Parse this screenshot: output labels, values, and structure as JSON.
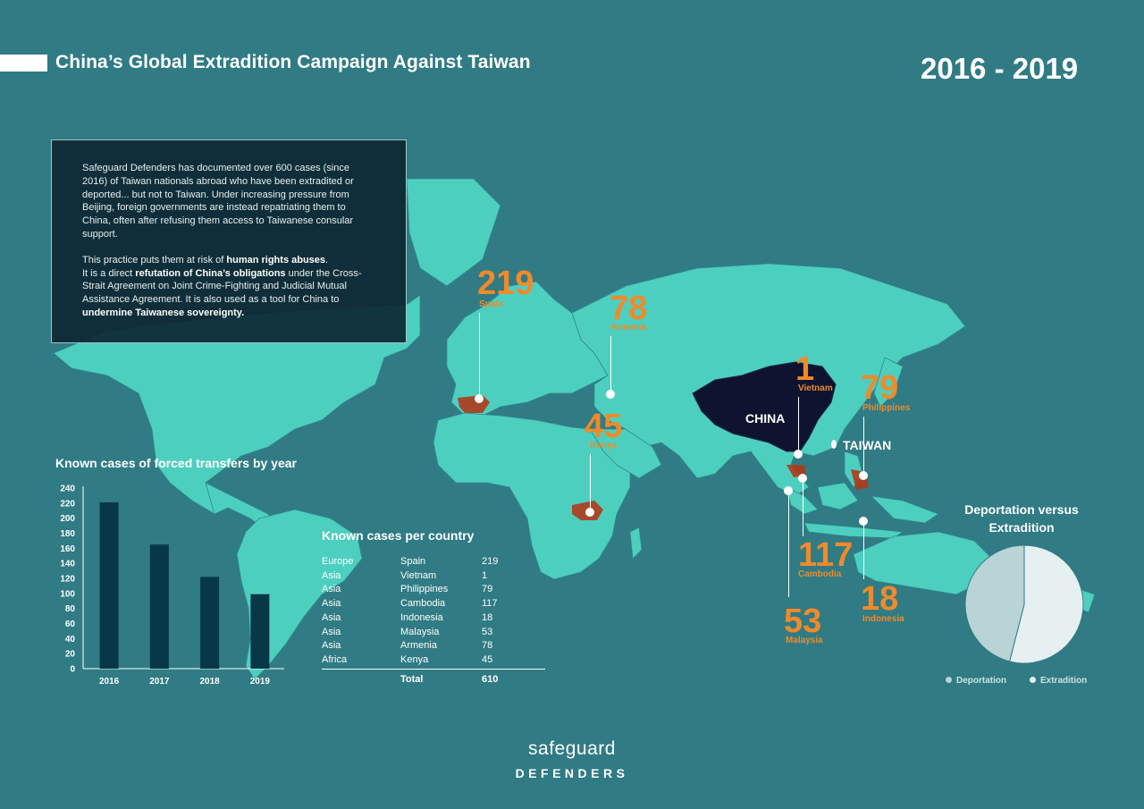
{
  "header": {
    "title": "China’s Global Extradition Campaign Against Taiwan",
    "years": "2016 - 2019"
  },
  "intro": {
    "p1": "Safeguard Defenders has documented over 600 cases (since 2016) of Taiwan nationals abroad who have been extradited or deported... but not to Taiwan. Under increasing pressure from Beijing, foreign governments are instead repatriating them to China, often after refusing them access to Taiwanese consular support.",
    "p2_a": "This practice puts them at risk of ",
    "p2_b": "human rights abuses",
    "p2_c": ".",
    "p2_d": "It is a direct ",
    "p2_e": "refutation of China’s obligations",
    "p2_f": " under the Cross-Strait Agreement on Joint Crime-Fighting and Judicial Mutual Assistance Agreement. It is also used as a tool for China to ",
    "p2_g": "undermine Taiwanese sovereignty."
  },
  "map": {
    "china_label": "CHINA",
    "taiwan_label": "TAIWAN",
    "callouts": {
      "spain": {
        "value": "219",
        "name": "Spain"
      },
      "armenia": {
        "value": "78",
        "name": "Armenia"
      },
      "vietnam": {
        "value": "1",
        "name": "Vietnam"
      },
      "philippines": {
        "value": "79",
        "name": "Philippines"
      },
      "kenya": {
        "value": "45",
        "name": "Kenya"
      },
      "cambodia": {
        "value": "117",
        "name": "Cambodia"
      },
      "malaysia": {
        "value": "53",
        "name": "Malaysia"
      },
      "indonesia": {
        "value": "18",
        "name": "Indonesia"
      }
    },
    "colors": {
      "land": "#4dcfbf",
      "china": "#0e1430",
      "highlight": "#b03a1a",
      "accent": "#f08a2a",
      "background": "#307b84"
    }
  },
  "chart_data": [
    {
      "type": "bar",
      "title": "Known cases of forced transfers by year",
      "categories": [
        "2016",
        "2017",
        "2018",
        "2019"
      ],
      "values": [
        221,
        165,
        122,
        99
      ],
      "ylim": [
        0,
        240
      ],
      "yticks": [
        "0",
        "20",
        "40",
        "60",
        "80",
        "100",
        "120",
        "140",
        "160",
        "180",
        "200",
        "220",
        "240"
      ],
      "xlabel": "",
      "ylabel": "",
      "grid": false,
      "bar_color": "#073848"
    },
    {
      "type": "pie",
      "title": "Deportation versus Extradition",
      "labels": [
        "Deportation",
        "Extradition"
      ],
      "values": [
        46,
        54
      ],
      "colors": [
        "#b9d4d6",
        "#e6f0f0"
      ],
      "legend": "bottom"
    },
    {
      "type": "table",
      "title": "Known cases per country",
      "rows": [
        [
          "Europe",
          "Spain",
          "219"
        ],
        [
          "Asia",
          "Vietnam",
          "1"
        ],
        [
          "Asia",
          "Philippines",
          "79"
        ],
        [
          "Asia",
          "Cambodia",
          "117"
        ],
        [
          "Asia",
          "Indonesia",
          "18"
        ],
        [
          "Asia",
          "Malaysia",
          "53"
        ],
        [
          "Asia",
          "Armenia",
          "78"
        ],
        [
          "Africa",
          "Kenya",
          "45"
        ]
      ],
      "total_label": "Total",
      "total_value": "610"
    }
  ],
  "footer": {
    "logo_top": "safeguard",
    "logo_bottom": "DEFENDERS"
  }
}
